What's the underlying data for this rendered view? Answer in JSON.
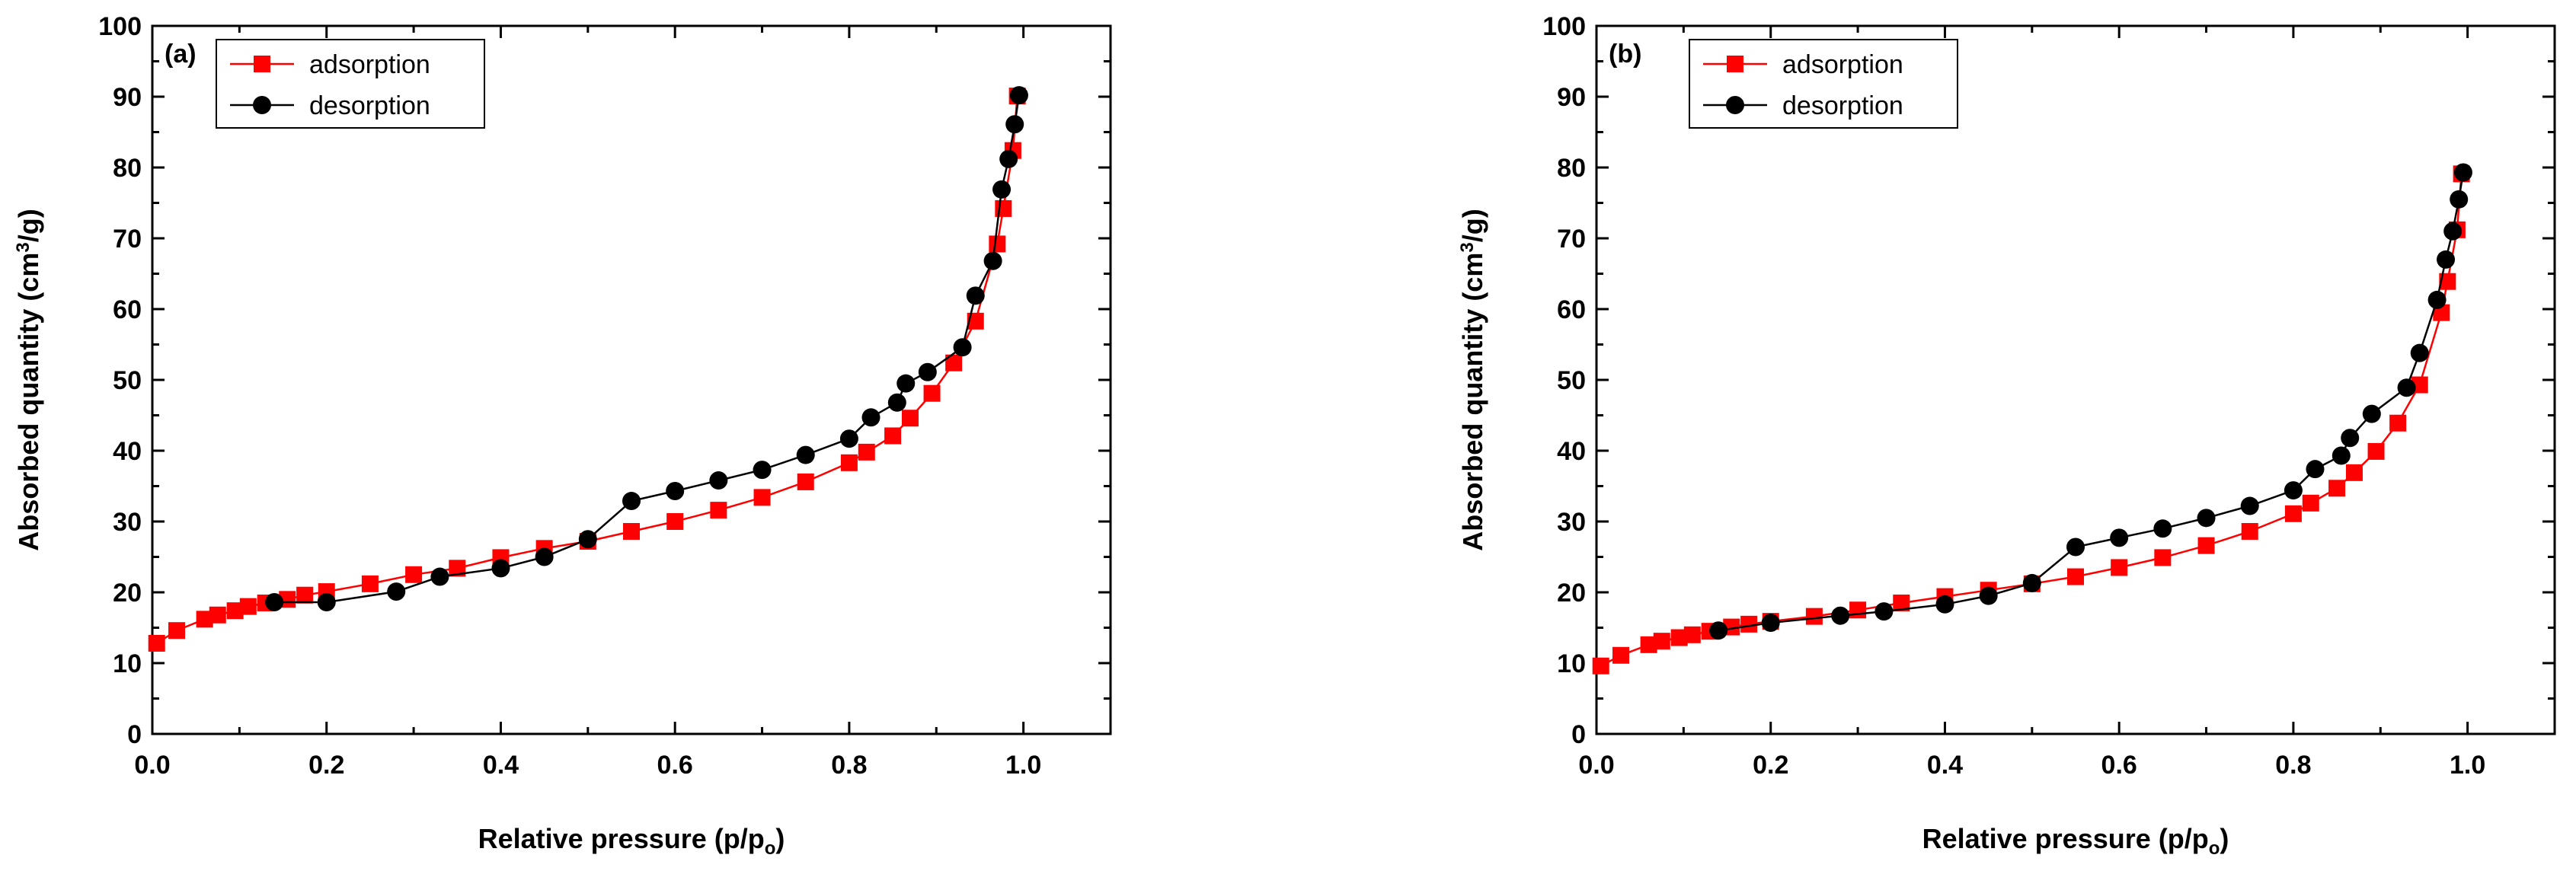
{
  "chart_data": [
    {
      "type": "line",
      "panel_label": "(a)",
      "xlabel": "Relative pressure (p/p",
      "xlabel_sub": "o",
      "xlabel_end": ")",
      "ylabel": "Absorbed quantity  (cm",
      "ylabel_sup": "3",
      "ylabel_end": "/g)",
      "xlim": [
        0.0,
        1.1
      ],
      "ylim": [
        0,
        100
      ],
      "x_ticks": [
        "0.0",
        "0.2",
        "0.4",
        "0.6",
        "0.8",
        "1.0"
      ],
      "y_ticks": [
        "0",
        "10",
        "20",
        "30",
        "40",
        "50",
        "60",
        "70",
        "80",
        "90",
        "100"
      ],
      "legend_position": "top-left",
      "series": [
        {
          "name": "adsorption",
          "color": "#ff0000",
          "marker": "square",
          "x": [
            0.005,
            0.028,
            0.06,
            0.075,
            0.095,
            0.11,
            0.13,
            0.155,
            0.175,
            0.2,
            0.25,
            0.3,
            0.35,
            0.4,
            0.45,
            0.5,
            0.55,
            0.6,
            0.65,
            0.7,
            0.75,
            0.8,
            0.82,
            0.85,
            0.87,
            0.895,
            0.92,
            0.945,
            0.97,
            0.977,
            0.988,
            0.993
          ],
          "y": [
            12.8,
            14.6,
            16.2,
            16.8,
            17.4,
            18.0,
            18.5,
            19.0,
            19.6,
            20.1,
            21.2,
            22.5,
            23.4,
            24.9,
            26.2,
            27.2,
            28.6,
            30.0,
            31.6,
            33.4,
            35.6,
            38.3,
            39.8,
            42.1,
            44.6,
            48.1,
            52.4,
            58.3,
            69.2,
            74.2,
            82.4,
            90.1
          ]
        },
        {
          "name": "desorption",
          "color": "#000000",
          "marker": "circle",
          "x": [
            0.995,
            0.99,
            0.983,
            0.975,
            0.965,
            0.945,
            0.93,
            0.89,
            0.865,
            0.855,
            0.825,
            0.8,
            0.75,
            0.7,
            0.65,
            0.6,
            0.55,
            0.5,
            0.45,
            0.4,
            0.33,
            0.28,
            0.2,
            0.14
          ],
          "y": [
            90.2,
            86.1,
            81.2,
            76.9,
            66.8,
            61.9,
            54.6,
            51.1,
            49.5,
            46.8,
            44.7,
            41.7,
            39.4,
            37.3,
            35.8,
            34.3,
            32.9,
            27.5,
            25.0,
            23.4,
            22.2,
            20.1,
            18.6,
            18.6
          ]
        }
      ]
    },
    {
      "type": "line",
      "panel_label": "(b)",
      "xlabel": "Relative pressure (p/p",
      "xlabel_sub": "o",
      "xlabel_end": ")",
      "ylabel": "Absorbed quantity  (cm",
      "ylabel_sup": "3",
      "ylabel_end": "/g)",
      "xlim": [
        0.0,
        1.1
      ],
      "ylim": [
        0,
        100
      ],
      "x_ticks": [
        "0.0",
        "0.2",
        "0.4",
        "0.6",
        "0.8",
        "1.0"
      ],
      "y_ticks": [
        "0",
        "10",
        "20",
        "30",
        "40",
        "50",
        "60",
        "70",
        "80",
        "90",
        "100"
      ],
      "legend_position": "top-left",
      "series": [
        {
          "name": "adsorption",
          "color": "#ff0000",
          "marker": "square",
          "x": [
            0.005,
            0.028,
            0.06,
            0.075,
            0.095,
            0.11,
            0.13,
            0.155,
            0.175,
            0.2,
            0.25,
            0.3,
            0.35,
            0.4,
            0.45,
            0.5,
            0.55,
            0.6,
            0.65,
            0.7,
            0.75,
            0.8,
            0.82,
            0.85,
            0.87,
            0.895,
            0.92,
            0.945,
            0.97,
            0.977,
            0.988,
            0.993
          ],
          "y": [
            9.6,
            11.1,
            12.6,
            13.1,
            13.6,
            14.0,
            14.5,
            15.1,
            15.5,
            15.9,
            16.6,
            17.5,
            18.5,
            19.4,
            20.3,
            21.2,
            22.2,
            23.5,
            24.9,
            26.6,
            28.6,
            31.1,
            32.6,
            34.7,
            36.9,
            39.9,
            43.9,
            49.3,
            59.5,
            63.9,
            71.2,
            79.1
          ]
        },
        {
          "name": "desorption",
          "color": "#000000",
          "marker": "circle",
          "x": [
            0.995,
            0.99,
            0.983,
            0.975,
            0.965,
            0.945,
            0.93,
            0.89,
            0.865,
            0.855,
            0.825,
            0.8,
            0.75,
            0.7,
            0.65,
            0.6,
            0.55,
            0.5,
            0.45,
            0.4,
            0.33,
            0.28,
            0.2,
            0.14
          ],
          "y": [
            79.3,
            75.5,
            71.0,
            67.0,
            61.3,
            53.8,
            48.9,
            45.2,
            41.8,
            39.3,
            37.4,
            34.4,
            32.2,
            30.5,
            29.0,
            27.7,
            26.4,
            21.3,
            19.5,
            18.3,
            17.3,
            16.7,
            15.7,
            14.6
          ]
        }
      ]
    }
  ]
}
